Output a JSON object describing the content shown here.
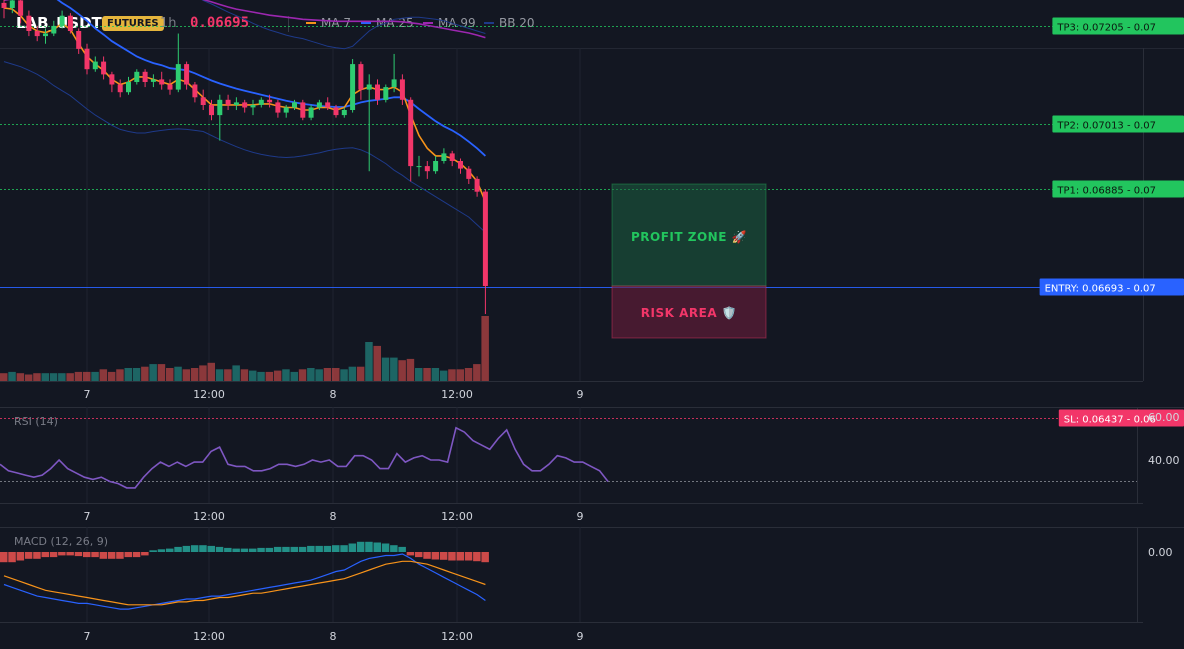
{
  "header": {
    "symbol": "LAB_USDT",
    "badge": "FUTURES",
    "timeframe": "1h",
    "last_price": "0.06695",
    "indicators": [
      {
        "name": "MA 7",
        "color": "#f7931a"
      },
      {
        "name": "MA 25",
        "color": "#2962ff"
      },
      {
        "name": "MA 99",
        "color": "#9c27b0"
      },
      {
        "name": "BB 20",
        "color": "#1e3a8a"
      }
    ]
  },
  "colors": {
    "up": "#26a69a",
    "up_bright": "#2ecc71",
    "down": "#ef5350",
    "down_bright": "#f23669",
    "entry": "#2962ff",
    "profit": "#22c55e",
    "risk": "#f23669",
    "rsi": "#7e57c2",
    "macd": "#2962ff",
    "signal": "#f7931a"
  },
  "chart_data": [
    {
      "type": "candlestick",
      "pane": "price",
      "x_tick_labels": [
        "7",
        "12:00",
        "8",
        "12:00",
        "9"
      ],
      "candles": [
        [
          0.0725,
          0.0727,
          0.0722,
          0.0724
        ],
        [
          0.0724,
          0.07265,
          0.0723,
          0.07255
        ],
        [
          0.07255,
          0.0726,
          0.0721,
          0.07225
        ],
        [
          0.07225,
          0.07235,
          0.07185,
          0.07195
        ],
        [
          0.07195,
          0.07205,
          0.07175,
          0.07185
        ],
        [
          0.07185,
          0.072,
          0.0717,
          0.0719
        ],
        [
          0.0719,
          0.07215,
          0.07185,
          0.07205
        ],
        [
          0.07205,
          0.07235,
          0.072,
          0.07225
        ],
        [
          0.07225,
          0.0723,
          0.0719,
          0.07195
        ],
        [
          0.07195,
          0.072,
          0.0715,
          0.0716
        ],
        [
          0.0716,
          0.0717,
          0.0711,
          0.0712
        ],
        [
          0.0712,
          0.07145,
          0.07115,
          0.07135
        ],
        [
          0.07135,
          0.07145,
          0.071,
          0.0711
        ],
        [
          0.0711,
          0.07115,
          0.07075,
          0.0709
        ],
        [
          0.0709,
          0.071,
          0.07065,
          0.07075
        ],
        [
          0.07075,
          0.07105,
          0.0707,
          0.07095
        ],
        [
          0.07095,
          0.0712,
          0.0709,
          0.07115
        ],
        [
          0.07115,
          0.0712,
          0.07085,
          0.07095
        ],
        [
          0.07095,
          0.0711,
          0.07085,
          0.071
        ],
        [
          0.071,
          0.07115,
          0.0708,
          0.0709
        ],
        [
          0.0709,
          0.071,
          0.0707,
          0.0708
        ],
        [
          0.0708,
          0.0719,
          0.07075,
          0.0713
        ],
        [
          0.0713,
          0.07135,
          0.0708,
          0.0709
        ],
        [
          0.0709,
          0.07095,
          0.07055,
          0.07065
        ],
        [
          0.07065,
          0.0708,
          0.0704,
          0.0705
        ],
        [
          0.0705,
          0.0706,
          0.0702,
          0.0703
        ],
        [
          0.0703,
          0.0707,
          0.0698,
          0.0706
        ],
        [
          0.0706,
          0.0707,
          0.0704,
          0.0705
        ],
        [
          0.0705,
          0.07065,
          0.0704,
          0.07055
        ],
        [
          0.07055,
          0.0706,
          0.07035,
          0.07045
        ],
        [
          0.07045,
          0.0706,
          0.0703,
          0.0705
        ],
        [
          0.0705,
          0.07065,
          0.07045,
          0.0706
        ],
        [
          0.0706,
          0.0707,
          0.07045,
          0.07055
        ],
        [
          0.07055,
          0.0706,
          0.07025,
          0.07035
        ],
        [
          0.07035,
          0.0705,
          0.07025,
          0.07045
        ],
        [
          0.07045,
          0.0706,
          0.0704,
          0.07055
        ],
        [
          0.07055,
          0.0706,
          0.0702,
          0.07025
        ],
        [
          0.07025,
          0.0705,
          0.0702,
          0.07045
        ],
        [
          0.07045,
          0.0706,
          0.0704,
          0.07055
        ],
        [
          0.07055,
          0.07065,
          0.0704,
          0.07045
        ],
        [
          0.07045,
          0.0705,
          0.07025,
          0.0703
        ],
        [
          0.0703,
          0.07045,
          0.07025,
          0.0704
        ],
        [
          0.0704,
          0.0714,
          0.07035,
          0.0713
        ],
        [
          0.0713,
          0.07135,
          0.0706,
          0.0708
        ],
        [
          0.0708,
          0.0711,
          0.0692,
          0.0709
        ],
        [
          0.0709,
          0.071,
          0.0705,
          0.0706
        ],
        [
          0.0706,
          0.0709,
          0.07055,
          0.07085
        ],
        [
          0.07085,
          0.0715,
          0.07075,
          0.071
        ],
        [
          0.071,
          0.0711,
          0.0705,
          0.0706
        ],
        [
          0.0706,
          0.07065,
          0.069,
          0.0693
        ],
        [
          0.0693,
          0.0695,
          0.0691,
          0.0693
        ],
        [
          0.0693,
          0.0694,
          0.06905,
          0.0692
        ],
        [
          0.0692,
          0.0695,
          0.06915,
          0.0694
        ],
        [
          0.0694,
          0.06965,
          0.06935,
          0.06955
        ],
        [
          0.06955,
          0.0696,
          0.0693,
          0.0694
        ],
        [
          0.0694,
          0.06945,
          0.06915,
          0.06925
        ],
        [
          0.06925,
          0.0693,
          0.06895,
          0.06905
        ],
        [
          0.06905,
          0.0691,
          0.0687,
          0.0688
        ],
        [
          0.0688,
          0.06885,
          0.0664,
          0.06695
        ]
      ],
      "ma7": [
        0.0724,
        0.07238,
        0.07225,
        0.07205,
        0.07195,
        0.07192,
        0.07198,
        0.0721,
        0.07198,
        0.0717,
        0.07145,
        0.0713,
        0.07118,
        0.071,
        0.0709,
        0.07095,
        0.07105,
        0.07105,
        0.071,
        0.07095,
        0.0709,
        0.071,
        0.07095,
        0.0708,
        0.07065,
        0.0705,
        0.0705,
        0.0705,
        0.0705,
        0.0705,
        0.0705,
        0.07052,
        0.07052,
        0.07048,
        0.07045,
        0.07045,
        0.0704,
        0.0704,
        0.07045,
        0.07045,
        0.0704,
        0.07045,
        0.0707,
        0.0708,
        0.07085,
        0.0708,
        0.0708,
        0.07085,
        0.07075,
        0.0703,
        0.0699,
        0.06965,
        0.0695,
        0.0695,
        0.06945,
        0.06935,
        0.0692,
        0.069,
        0.0686
      ],
      "ma25": [
        0.0734,
        0.0733,
        0.0732,
        0.07305,
        0.0729,
        0.07275,
        0.07262,
        0.0725,
        0.0724,
        0.07228,
        0.07215,
        0.072,
        0.07188,
        0.07175,
        0.07165,
        0.07155,
        0.07145,
        0.07138,
        0.07132,
        0.07128,
        0.07122,
        0.0712,
        0.07118,
        0.07112,
        0.07105,
        0.07098,
        0.07092,
        0.07087,
        0.07082,
        0.07078,
        0.07074,
        0.0707,
        0.07066,
        0.07062,
        0.07058,
        0.07055,
        0.07052,
        0.0705,
        0.07048,
        0.07047,
        0.07046,
        0.07046,
        0.0705,
        0.07055,
        0.07058,
        0.0706,
        0.07062,
        0.07065,
        0.07065,
        0.07055,
        0.07042,
        0.0703,
        0.07018,
        0.07008,
        0.07,
        0.0699,
        0.06978,
        0.06965,
        0.0695
      ],
      "ma99": [
        0.07255,
        0.07258,
        0.07262,
        0.07265,
        0.07268,
        0.0727,
        0.07272,
        0.07274,
        0.07276,
        0.07277,
        0.07278,
        0.07278,
        0.07279,
        0.0728,
        0.0728,
        0.0728,
        0.0728,
        0.07279,
        0.07278,
        0.07276,
        0.07273,
        0.0727,
        0.07266,
        0.07262,
        0.07257,
        0.07252,
        0.07247,
        0.07242,
        0.07238,
        0.07235,
        0.07232,
        0.07229,
        0.07226,
        0.07224,
        0.07222,
        0.0722,
        0.07218,
        0.07217,
        0.07216,
        0.07215,
        0.07214,
        0.07214,
        0.07214,
        0.07214,
        0.07214,
        0.07214,
        0.07214,
        0.07214,
        0.07213,
        0.07211,
        0.07209,
        0.07206,
        0.07203,
        0.072,
        0.07197,
        0.07194,
        0.07191,
        0.07187,
        0.07182
      ],
      "bb_upper": [
        0.0752,
        0.0751,
        0.07495,
        0.0748,
        0.07462,
        0.07445,
        0.0743,
        0.07415,
        0.074,
        0.07388,
        0.07372,
        0.07358,
        0.07345,
        0.07335,
        0.07323,
        0.0731,
        0.073,
        0.0729,
        0.07282,
        0.07275,
        0.0727,
        0.07275,
        0.07272,
        0.07265,
        0.07255,
        0.07248,
        0.0724,
        0.07232,
        0.07225,
        0.07218,
        0.0721,
        0.07203,
        0.07197,
        0.07192,
        0.07187,
        0.07183,
        0.0718,
        0.07175,
        0.0717,
        0.07165,
        0.07162,
        0.0716,
        0.07165,
        0.0718,
        0.07195,
        0.07205,
        0.0721,
        0.07218,
        0.0722,
        0.07222,
        0.07222,
        0.0722,
        0.07218,
        0.07215,
        0.0721,
        0.07205,
        0.072,
        0.07195,
        0.0719
      ],
      "bb_lower": [
        0.07135,
        0.0713,
        0.07125,
        0.07118,
        0.0711,
        0.071,
        0.07088,
        0.07078,
        0.07068,
        0.07055,
        0.07042,
        0.0703,
        0.0702,
        0.0701,
        0.07002,
        0.06998,
        0.06995,
        0.06995,
        0.06998,
        0.07,
        0.07002,
        0.07003,
        0.07002,
        0.07,
        0.06998,
        0.0699,
        0.06982,
        0.06975,
        0.06968,
        0.06962,
        0.06957,
        0.06953,
        0.0695,
        0.06948,
        0.06947,
        0.06948,
        0.0695,
        0.06953,
        0.06956,
        0.0696,
        0.06963,
        0.06965,
        0.06966,
        0.06962,
        0.06955,
        0.06945,
        0.06935,
        0.06922,
        0.06912,
        0.069,
        0.0689,
        0.0688,
        0.0687,
        0.0686,
        0.0685,
        0.0684,
        0.0683,
        0.06815,
        0.068
      ],
      "volume": [
        6,
        7,
        6,
        5,
        6,
        6,
        6,
        6,
        6,
        7,
        7,
        7,
        9,
        7,
        9,
        10,
        10,
        11,
        13,
        13,
        10,
        11,
        9,
        10,
        12,
        14,
        9,
        9,
        12,
        9,
        8,
        7,
        7,
        8,
        9,
        7,
        9,
        10,
        9,
        10,
        10,
        9,
        11,
        11,
        30,
        27,
        18,
        18,
        16,
        17,
        10,
        10,
        10,
        8,
        9,
        9,
        10,
        13,
        50
      ]
    },
    {
      "type": "line",
      "pane": "rsi",
      "title": "RSI (14)",
      "y_tick_labels": [
        "60.00",
        "40.00"
      ],
      "ylim": [
        20,
        65
      ],
      "reference_line": 30,
      "x_tick_labels": [
        "7",
        "12:00",
        "8",
        "12:00",
        "9"
      ],
      "values": [
        38,
        38,
        36,
        33,
        32,
        34,
        37,
        34,
        33,
        33,
        33,
        36,
        40,
        44,
        38,
        36,
        34,
        33,
        35,
        39,
        37,
        39,
        39,
        42,
        44,
        36,
        36,
        34,
        34,
        33,
        38,
        41,
        38,
        42,
        35,
        36,
        37,
        38,
        37,
        38,
        36,
        38,
        60,
        58,
        52,
        51,
        49,
        46,
        44,
        40,
        41,
        36,
        36,
        35,
        38,
        36,
        40,
        39,
        37
      ],
      "rsi_series": [
        38,
        35,
        34,
        33,
        32,
        33,
        36,
        40,
        36,
        34,
        32,
        31,
        32,
        30,
        29,
        27,
        27,
        32,
        36,
        39,
        37,
        39,
        37,
        39,
        39,
        44,
        46,
        38,
        37,
        37,
        35,
        35,
        36,
        38,
        38,
        37,
        38,
        40,
        39,
        40,
        37,
        37,
        42,
        42,
        40,
        36,
        36,
        43,
        39,
        41,
        42,
        40,
        40,
        39,
        55,
        53,
        49,
        47,
        45,
        50,
        54,
        45,
        38,
        35,
        35,
        38,
        42,
        41,
        39,
        39,
        37,
        35,
        30
      ]
    },
    {
      "type": "bar+line",
      "pane": "macd",
      "title": "MACD (12, 26, 9)",
      "y_tick_labels": [
        "0.00"
      ],
      "x_tick_labels": [
        "7",
        "12:00",
        "8",
        "12:00",
        "9"
      ],
      "histogram": [
        -3,
        -3,
        -2.5,
        -2,
        -2,
        -1.5,
        -1.5,
        -1,
        -1,
        -1.2,
        -1.5,
        -1.5,
        -2,
        -2,
        -2,
        -1.5,
        -1.5,
        -1,
        0.5,
        0.8,
        1,
        1.5,
        1.8,
        2,
        2,
        1.8,
        1.5,
        1.2,
        1,
        1,
        1,
        1.2,
        1.2,
        1.5,
        1.5,
        1.5,
        1.5,
        1.8,
        1.8,
        1.8,
        2,
        2,
        2.5,
        3,
        3,
        2.8,
        2.5,
        2,
        1.5,
        -1,
        -1.5,
        -2,
        -2.2,
        -2.3,
        -2.5,
        -2.5,
        -2.5,
        -2.7,
        -3
      ],
      "macd_line": [
        -10,
        -12,
        -14,
        -16,
        -18,
        -19,
        -20,
        -21,
        -22,
        -23,
        -23,
        -24,
        -25,
        -26,
        -27,
        -27,
        -26,
        -25,
        -24,
        -23,
        -22,
        -21,
        -20,
        -20,
        -19,
        -18,
        -18,
        -17,
        -16,
        -15,
        -14,
        -13,
        -12,
        -11,
        -10,
        -9,
        -8,
        -7,
        -5,
        -3,
        -1,
        0,
        3,
        6,
        8,
        9,
        10,
        10,
        11,
        8,
        4,
        1,
        -2,
        -5,
        -8,
        -11,
        -14,
        -17,
        -21
      ],
      "signal_line": [
        -4,
        -6,
        -8,
        -10,
        -12,
        -14,
        -15,
        -16,
        -17,
        -18,
        -19,
        -20,
        -21,
        -22,
        -23,
        -24,
        -24,
        -24,
        -24,
        -24,
        -23,
        -22,
        -22,
        -21,
        -21,
        -20,
        -19,
        -19,
        -18,
        -17,
        -16,
        -16,
        -15,
        -14,
        -13,
        -12,
        -11,
        -10,
        -9,
        -8,
        -7,
        -6,
        -4,
        -2,
        0,
        2,
        4,
        5,
        6,
        6,
        5,
        4,
        2,
        0,
        -2,
        -4,
        -6,
        -8,
        -10
      ]
    }
  ],
  "levels": {
    "tp3": {
      "label": "TP3: 0.07205",
      "price": 0.07205,
      "suffix": "0.07"
    },
    "tp2": {
      "label": "TP2: 0.07013",
      "price": 0.07013,
      "suffix": "0.07"
    },
    "tp1": {
      "label": "TP1: 0.06885",
      "price": 0.06885,
      "suffix": "0.07"
    },
    "entry": {
      "label": "ENTRY: 0.06693",
      "price": 0.06693,
      "suffix": "0.07"
    },
    "sl": {
      "label": "SL: 0.06437",
      "price": 0.06437,
      "suffix": "0.06"
    }
  },
  "zones": {
    "profit": "PROFIT ZONE 🚀",
    "risk": "RISK AREA 🛡️"
  }
}
